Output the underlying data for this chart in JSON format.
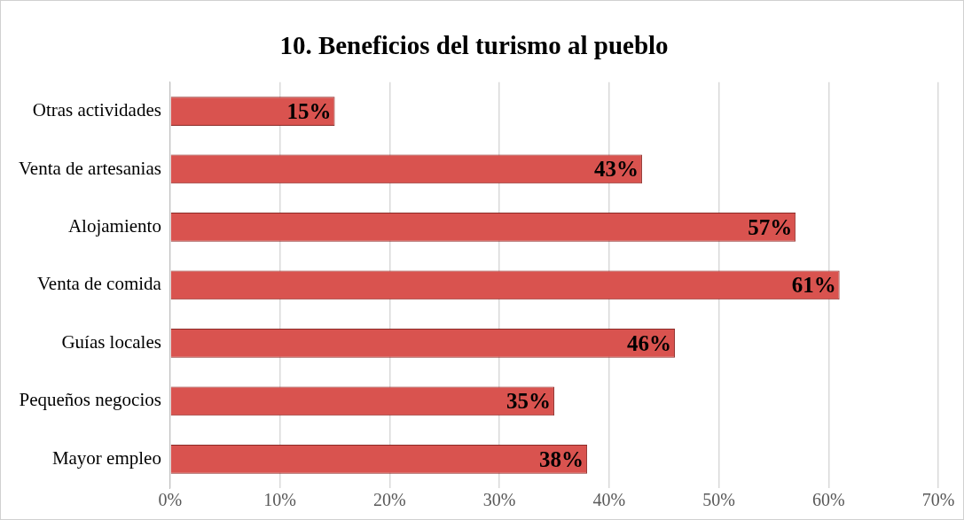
{
  "chart_data": {
    "type": "bar",
    "orientation": "horizontal",
    "title": "10. Beneficios del turismo al pueblo",
    "categories": [
      "Otras actividades",
      "Venta de artesanias",
      "Alojamiento",
      "Venta de comida",
      "Guías locales",
      "Pequeños negocios",
      "Mayor empleo"
    ],
    "values": [
      15,
      43,
      57,
      61,
      46,
      35,
      38
    ],
    "value_labels": [
      "15%",
      "43%",
      "57%",
      "61%",
      "46%",
      "35%",
      "38%"
    ],
    "color": "#d9534f",
    "xlim": [
      0,
      70
    ],
    "xticks": [
      {
        "value": 0,
        "label": "0%"
      },
      {
        "value": 10,
        "label": "10%"
      },
      {
        "value": 20,
        "label": "20%"
      },
      {
        "value": 30,
        "label": "30%"
      },
      {
        "value": 40,
        "label": "40%"
      },
      {
        "value": 50,
        "label": "50%"
      },
      {
        "value": 60,
        "label": "60%"
      },
      {
        "value": 70,
        "label": "70%"
      }
    ],
    "grid": "x",
    "legend": false
  }
}
